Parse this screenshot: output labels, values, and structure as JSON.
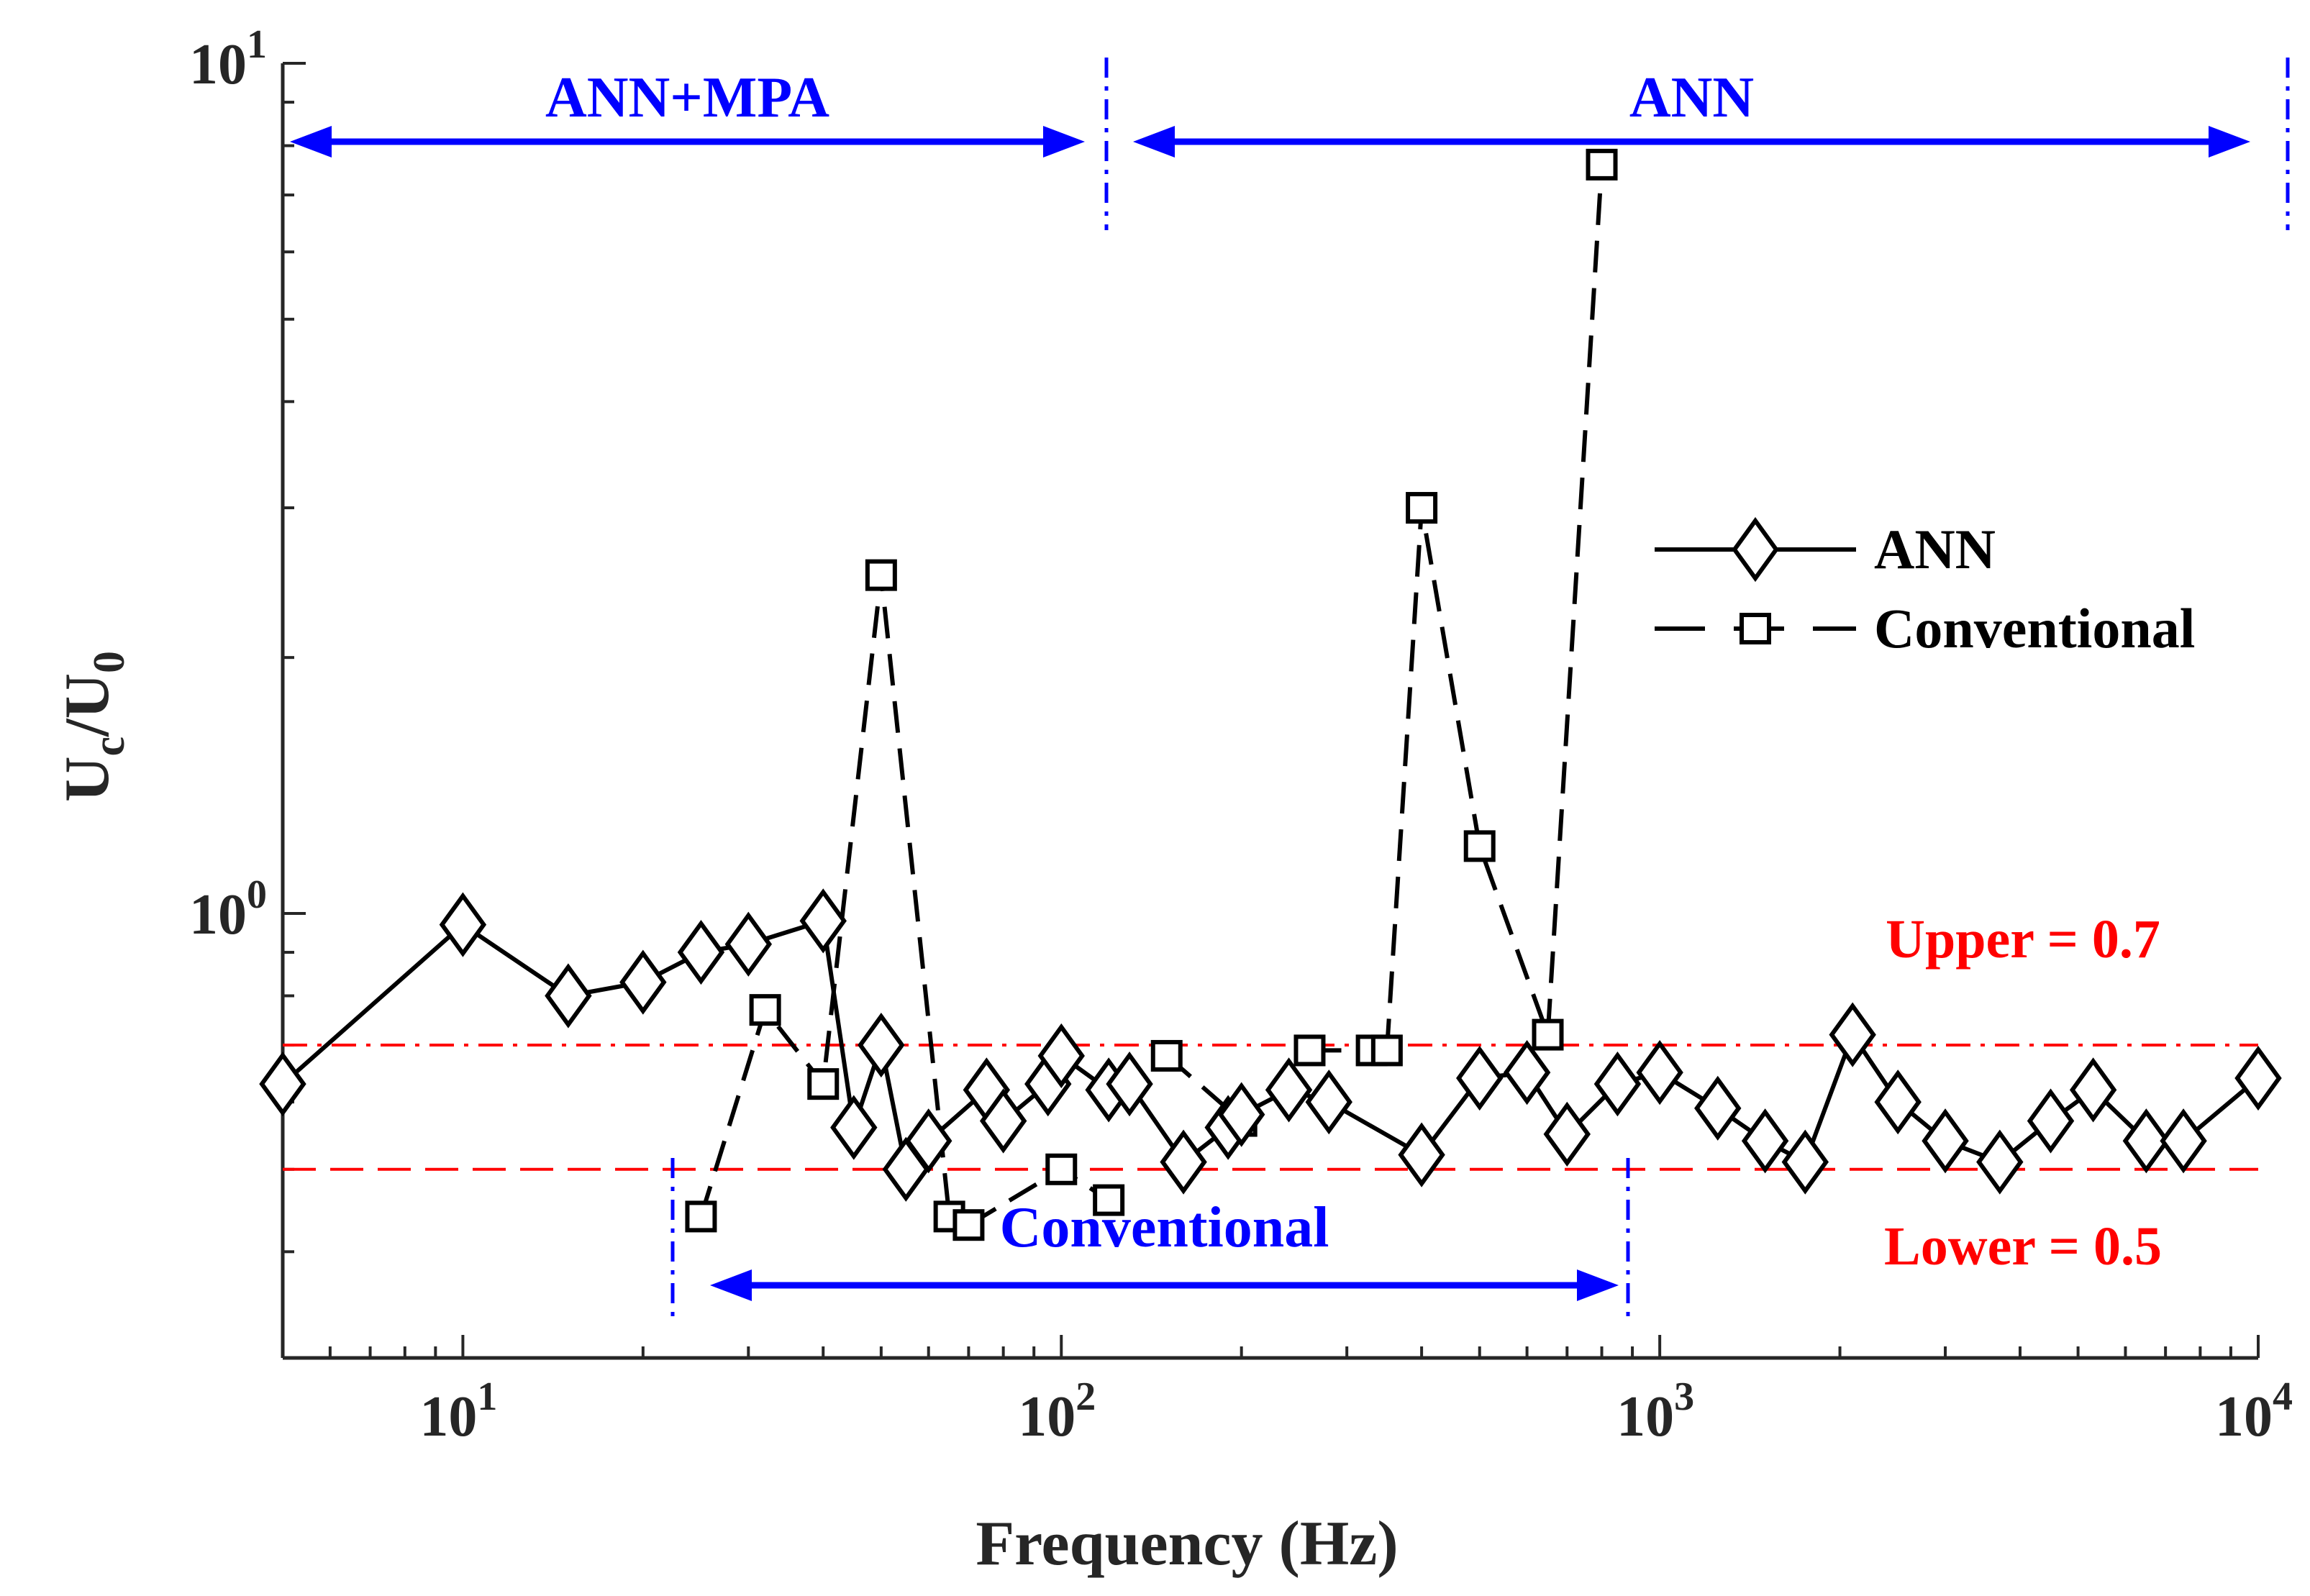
{
  "chart_data": {
    "type": "line",
    "xscale": "log",
    "yscale": "log",
    "xlim": [
      5,
      10000
    ],
    "ylim": [
      0.3,
      10
    ],
    "xlabel": "Frequency (Hz)",
    "ylabel": {
      "main": "U",
      "sub1": "c",
      "slash": "/U",
      "sub2": "0"
    },
    "xticks": [
      {
        "value": 10,
        "base": "10",
        "exp": "1"
      },
      {
        "value": 100,
        "base": "10",
        "exp": "2"
      },
      {
        "value": 1000,
        "base": "10",
        "exp": "3"
      },
      {
        "value": 10000,
        "base": "10",
        "exp": "4"
      }
    ],
    "yticks": [
      {
        "value": 1,
        "base": "10",
        "exp": "0"
      },
      {
        "value": 10,
        "base": "10",
        "exp": "1"
      }
    ],
    "series": [
      {
        "name": "ANN",
        "style": "solid",
        "marker": "diamond",
        "color": "#000000",
        "segments": [
          [
            [
              5,
              0.63
            ],
            [
              10,
              0.97
            ],
            [
              15,
              0.8
            ],
            [
              20,
              0.83
            ],
            [
              25,
              0.9
            ],
            [
              30,
              0.92
            ],
            [
              40,
              0.98
            ],
            [
              45,
              0.56
            ],
            [
              50,
              0.7
            ],
            [
              55,
              0.5
            ],
            [
              60,
              0.54
            ],
            [
              75,
              0.62
            ],
            [
              80,
              0.57
            ],
            [
              95,
              0.63
            ],
            [
              100,
              0.68
            ],
            [
              120,
              0.62
            ],
            [
              130,
              0.63
            ],
            [
              160,
              0.51
            ],
            [
              190,
              0.56
            ],
            [
              200,
              0.58
            ],
            [
              240,
              0.62
            ],
            [
              280,
              0.6
            ],
            [
              400,
              0.52
            ],
            [
              500,
              0.64
            ],
            [
              600,
              0.65
            ],
            [
              700,
              0.55
            ],
            [
              850,
              0.63
            ],
            [
              1000,
              0.65
            ],
            [
              1250,
              0.59
            ],
            [
              1500,
              0.54
            ],
            [
              1750,
              0.51
            ],
            [
              2100,
              0.72
            ],
            [
              2500,
              0.6
            ],
            [
              3000,
              0.54
            ],
            [
              3700,
              0.51
            ],
            [
              4500,
              0.57
            ],
            [
              5300,
              0.62
            ],
            [
              6500,
              0.54
            ],
            [
              7500,
              0.54
            ],
            [
              10000,
              0.64
            ]
          ]
        ]
      },
      {
        "name": "Conventional",
        "style": "dashed",
        "marker": "square",
        "color": "#000000",
        "segments": [
          [
            [
              25,
              0.44
            ],
            [
              32,
              0.77
            ],
            [
              40,
              0.63
            ],
            [
              50,
              2.5
            ],
            [
              65,
              0.44
            ]
          ],
          [
            [
              70,
              0.43
            ],
            [
              100,
              0.5
            ],
            [
              120,
              0.46
            ]
          ],
          [
            [
              150,
              0.68
            ],
            [
              200,
              0.57
            ]
          ],
          [
            [
              260,
              0.69
            ],
            [
              330,
              0.69
            ]
          ],
          [
            [
              350,
              0.69
            ],
            [
              400,
              3.0
            ],
            [
              500,
              1.2
            ],
            [
              650,
              0.72
            ],
            [
              800,
              7.6
            ]
          ]
        ]
      }
    ],
    "reference_lines": [
      {
        "name": "upper-threshold",
        "label": "Upper = 0.7",
        "value": 0.7,
        "style": "dashdot",
        "color": "#ff0000"
      },
      {
        "name": "lower-threshold",
        "label": "Lower = 0.5",
        "value": 0.5,
        "style": "dashed",
        "color": "#ff0000"
      }
    ],
    "range_annotations": [
      {
        "name": "ann-mpa-range",
        "label": "ANN+MPA",
        "from": 5,
        "to": 120,
        "color": "#0000ff"
      },
      {
        "name": "ann-range",
        "label": "ANN",
        "from": 120,
        "to": 10000,
        "color": "#0000ff"
      },
      {
        "name": "conventional-range",
        "label": "Conventional",
        "from": 22,
        "to": 900,
        "color": "#0000ff"
      }
    ],
    "legend": {
      "position": "right-middle",
      "entries": [
        "ANN",
        "Conventional"
      ]
    },
    "grid": false
  }
}
